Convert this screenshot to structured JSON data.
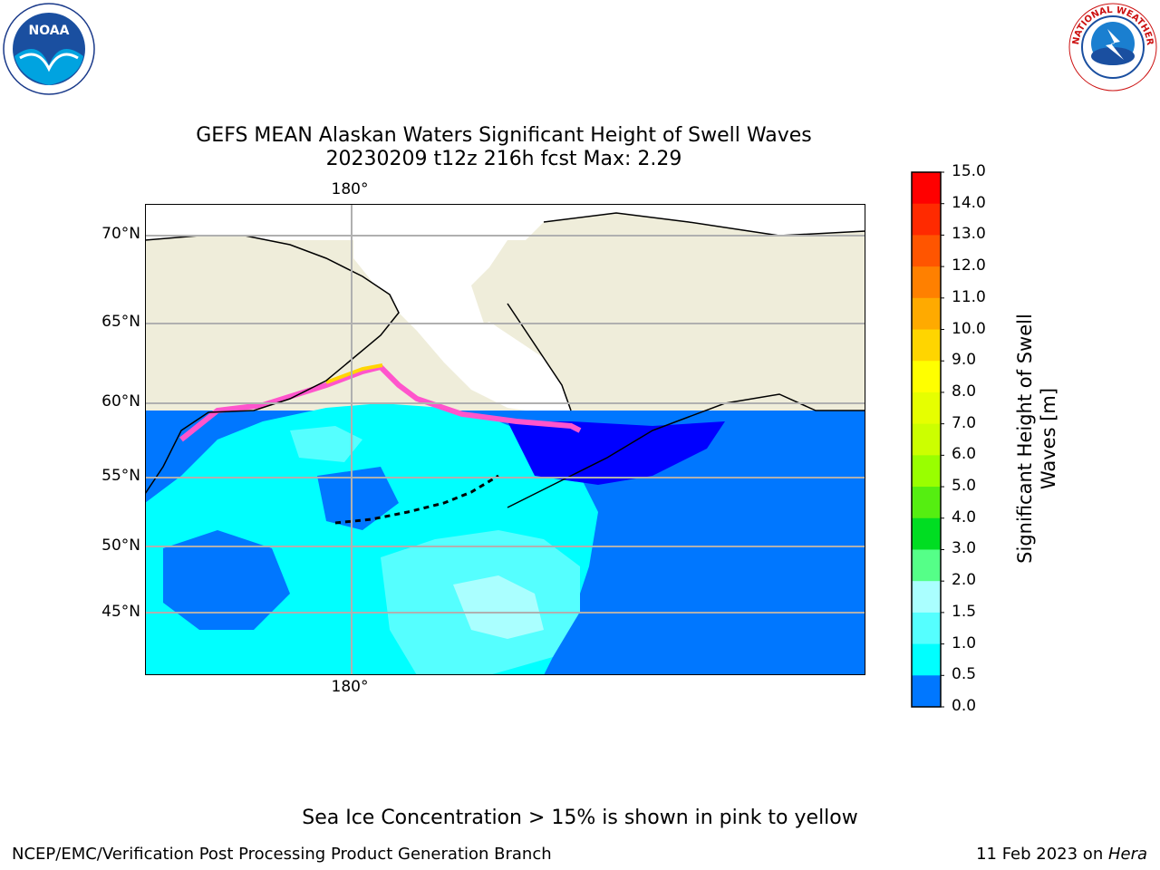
{
  "title": {
    "line1": "GEFS MEAN Alaskan Waters Significant Height of Swell Waves",
    "line2": "20230209 t12z 216h fcst   Max: 2.29"
  },
  "map": {
    "lat_labels": [
      "70°N",
      "65°N",
      "60°N",
      "55°N",
      "50°N",
      "45°N"
    ],
    "lon_label_top": "180°",
    "lon_label_bottom": "180°",
    "colors": {
      "land": "#efedda",
      "ocean_default": "#0077ff",
      "ocean_light": "#00ffff",
      "ocean_lighter": "#55ffff",
      "ocean_lightest": "#aaffff",
      "ocean_dark": "#0000ff",
      "ice_pink": "#ff55cc",
      "ice_yellow": "#ffff00",
      "grid": "#b0b0b0"
    }
  },
  "colorbar": {
    "label": "Significant Height of Swell Waves [m]",
    "ticks": [
      "15.0",
      "14.0",
      "13.0",
      "12.0",
      "11.0",
      "10.0",
      "9.0",
      "8.0",
      "7.0",
      "6.0",
      "5.0",
      "4.0",
      "3.0",
      "2.0",
      "1.5",
      "1.0",
      "0.5",
      "0.0"
    ],
    "colors": [
      "#ff0000",
      "#ff2a00",
      "#ff5500",
      "#ff8000",
      "#ffaa00",
      "#ffd500",
      "#ffff00",
      "#e6ff00",
      "#ccff00",
      "#99ff00",
      "#55ee11",
      "#00dd22",
      "#55ff88",
      "#aaffff",
      "#55ffff",
      "#00ffff",
      "#0077ff",
      "#0000ff"
    ]
  },
  "caption": "Sea Ice Concentration > 15% is shown in pink to yellow",
  "footer": {
    "left": "NCEP/EMC/Verification Post Processing Product Generation Branch",
    "right_date": "11 Feb 2023 on ",
    "right_host": "Hera"
  },
  "logos": {
    "noaa": {
      "text": "NOAA"
    },
    "nws": {
      "text": "NATIONAL WEATHER SERVICE"
    }
  }
}
